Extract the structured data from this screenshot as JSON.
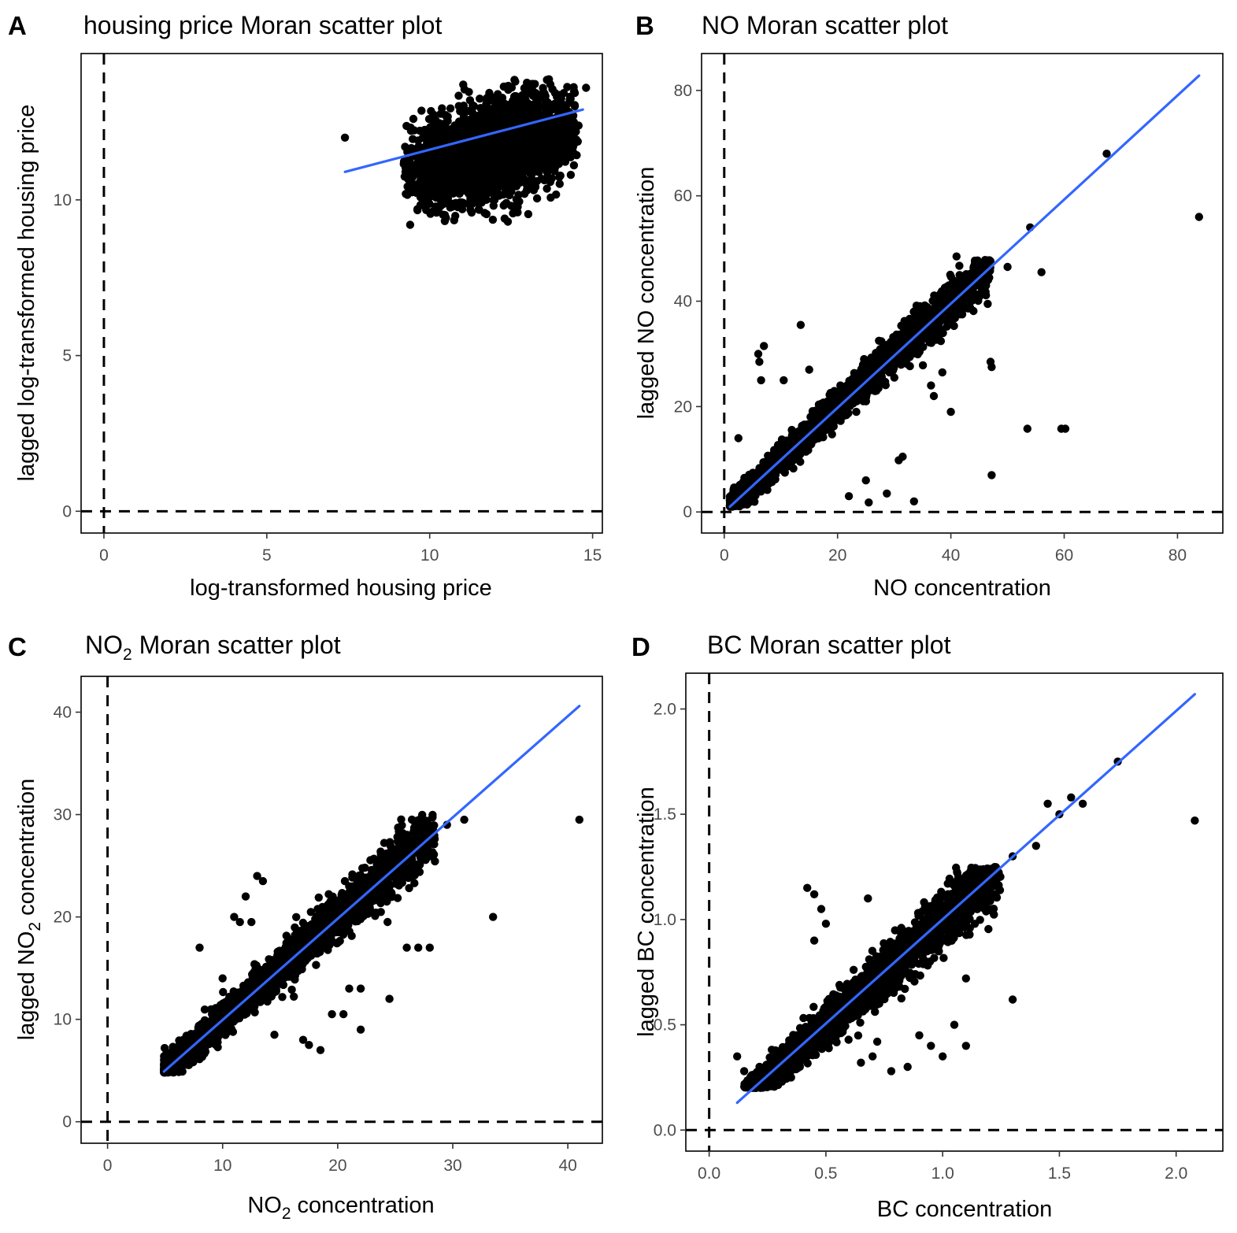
{
  "colors": {
    "fit_line": "#3366ff",
    "points": "#000000",
    "reference_lines": "#000000",
    "tick_text": "#4d4d4d"
  },
  "chart_data": [
    {
      "type": "scatter",
      "panel": "A",
      "title": "housing price Moran scatter plot",
      "title_parts": [
        "housing price Moran scatter plot"
      ],
      "xlabel": "log-transformed housing price",
      "xlabel_parts": [
        "log-transformed housing price"
      ],
      "ylabel": "lagged log-transformed housing price",
      "ylabel_parts": [
        "lagged log-transformed housing price"
      ],
      "xlim": [
        -0.7,
        15.3
      ],
      "ylim": [
        -0.7,
        14.7
      ],
      "xticks": [
        0,
        5,
        10,
        15
      ],
      "xtick_labels": [
        "0",
        "5",
        "10",
        "15"
      ],
      "yticks": [
        0,
        5,
        10
      ],
      "ytick_labels": [
        "0",
        "5",
        "10"
      ],
      "reference_lines": {
        "x": 0,
        "y": 0
      },
      "fit_line": {
        "x": [
          7.4,
          14.7
        ],
        "y": [
          10.9,
          12.9
        ]
      },
      "cloud": {
        "x_range": [
          9.2,
          14.6
        ],
        "y_range": [
          9.3,
          13.9
        ],
        "n": 2600,
        "slope": 0.27,
        "spread": 0.75
      },
      "points": [
        [
          7.4,
          12.0
        ],
        [
          9.4,
          9.2
        ],
        [
          14.8,
          13.6
        ],
        [
          12.4,
          9.3
        ],
        [
          12.3,
          9.4
        ],
        [
          10.8,
          9.9
        ],
        [
          11.0,
          9.7
        ],
        [
          12.7,
          9.6
        ],
        [
          9.5,
          12.6
        ]
      ]
    },
    {
      "type": "scatter",
      "panel": "B",
      "title": "NO Moran scatter plot",
      "title_parts": [
        "NO Moran scatter plot"
      ],
      "xlabel": "NO concentration",
      "xlabel_parts": [
        "NO concentration"
      ],
      "ylabel": "lagged NO concentration",
      "ylabel_parts": [
        "lagged NO concentration"
      ],
      "xlim": [
        -4,
        88
      ],
      "ylim": [
        -4,
        87
      ],
      "xticks": [
        0,
        20,
        40,
        60,
        80
      ],
      "xtick_labels": [
        "0",
        "20",
        "40",
        "60",
        "80"
      ],
      "yticks": [
        0,
        20,
        40,
        60,
        80
      ],
      "ytick_labels": [
        "0",
        "20",
        "40",
        "60",
        "80"
      ],
      "reference_lines": {
        "x": 0,
        "y": 0
      },
      "fit_line": {
        "x": [
          1,
          83.8
        ],
        "y": [
          1,
          82.8
        ]
      },
      "cloud": {
        "x_range": [
          1,
          47
        ],
        "y_range": [
          1,
          48
        ],
        "n": 2200,
        "slope": 1.0,
        "spread": 1.6
      },
      "points": [
        [
          83.8,
          56.0
        ],
        [
          67.5,
          68.0
        ],
        [
          59.5,
          15.8
        ],
        [
          60.2,
          15.8
        ],
        [
          53.5,
          15.8
        ],
        [
          47.2,
          7.0
        ],
        [
          47.0,
          28.5
        ],
        [
          47.2,
          27.5
        ],
        [
          40.0,
          19.0
        ],
        [
          37.0,
          22.0
        ],
        [
          33.5,
          2.0
        ],
        [
          31.5,
          10.5
        ],
        [
          30.8,
          9.8
        ],
        [
          28.7,
          3.5
        ],
        [
          25.5,
          1.8
        ],
        [
          25.0,
          6.0
        ],
        [
          22.0,
          3.0
        ],
        [
          13.5,
          35.5
        ],
        [
          7.0,
          31.5
        ],
        [
          6.0,
          30.0
        ],
        [
          6.2,
          28.5
        ],
        [
          10.5,
          25.0
        ],
        [
          6.5,
          25.0
        ],
        [
          15.0,
          27.0
        ],
        [
          20.5,
          24.0
        ],
        [
          2.5,
          14.0
        ],
        [
          56.0,
          45.5
        ],
        [
          54.0,
          54.0
        ],
        [
          41.0,
          48.5
        ],
        [
          50.0,
          46.5
        ],
        [
          46.5,
          39.5
        ],
        [
          42.0,
          37.5
        ],
        [
          38.5,
          26.5
        ],
        [
          36.5,
          24.0
        ]
      ]
    },
    {
      "type": "scatter",
      "panel": "C",
      "title": "NO2 Moran scatter plot",
      "title_parts": [
        "NO",
        "2",
        " Moran scatter plot"
      ],
      "xlabel": "NO2 concentration",
      "xlabel_parts": [
        "NO",
        "2",
        " concentration"
      ],
      "ylabel": "lagged NO2 concentration",
      "ylabel_parts": [
        "lagged NO",
        "2",
        " concentration"
      ],
      "xlim": [
        -2.3,
        43
      ],
      "ylim": [
        -2.1,
        43.5
      ],
      "xticks": [
        0,
        10,
        20,
        30,
        40
      ],
      "xtick_labels": [
        "0",
        "10",
        "20",
        "30",
        "40"
      ],
      "yticks": [
        0,
        10,
        20,
        30,
        40
      ],
      "ytick_labels": [
        "0",
        "10",
        "20",
        "30",
        "40"
      ],
      "reference_lines": {
        "x": 0,
        "y": 0
      },
      "fit_line": {
        "x": [
          4.9,
          41.0
        ],
        "y": [
          4.9,
          40.6
        ]
      },
      "cloud": {
        "x_range": [
          4.9,
          28.5
        ],
        "y_range": [
          4.8,
          30.0
        ],
        "n": 2200,
        "slope": 1.0,
        "spread": 1.0
      },
      "points": [
        [
          41.0,
          29.5
        ],
        [
          33.5,
          20.0
        ],
        [
          28.0,
          17.0
        ],
        [
          27.0,
          17.0
        ],
        [
          26.0,
          17.0
        ],
        [
          24.5,
          12.0
        ],
        [
          22.0,
          13.0
        ],
        [
          22.0,
          9.0
        ],
        [
          21.0,
          13.0
        ],
        [
          20.5,
          10.5
        ],
        [
          19.5,
          10.5
        ],
        [
          18.5,
          7.0
        ],
        [
          17.5,
          7.5
        ],
        [
          17.0,
          8.0
        ],
        [
          14.5,
          8.5
        ],
        [
          13.0,
          24.0
        ],
        [
          13.5,
          23.5
        ],
        [
          12.0,
          22.0
        ],
        [
          11.0,
          20.0
        ],
        [
          11.5,
          19.5
        ],
        [
          12.5,
          19.5
        ],
        [
          8.0,
          17.0
        ],
        [
          10.0,
          14.0
        ],
        [
          31.0,
          29.5
        ],
        [
          29.5,
          29.0
        ]
      ]
    },
    {
      "type": "scatter",
      "panel": "D",
      "title": "BC Moran scatter plot",
      "title_parts": [
        "BC Moran scatter plot"
      ],
      "xlabel": "BC concentration",
      "xlabel_parts": [
        "BC concentration"
      ],
      "ylabel": "lagged BC concentration",
      "ylabel_parts": [
        "lagged BC concentration"
      ],
      "xlim": [
        -0.1,
        2.2
      ],
      "ylim": [
        -0.1,
        2.17
      ],
      "xticks": [
        0.0,
        0.5,
        1.0,
        1.5,
        2.0
      ],
      "xtick_labels": [
        "0.0",
        "0.5",
        "1.0",
        "1.5",
        "2.0"
      ],
      "yticks": [
        0.0,
        0.5,
        1.0,
        1.5,
        2.0
      ],
      "ytick_labels": [
        "0.0",
        "0.5",
        "1.0",
        "1.5",
        "2.0"
      ],
      "reference_lines": {
        "x": 0,
        "y": 0
      },
      "fit_line": {
        "x": [
          0.12,
          2.08
        ],
        "y": [
          0.13,
          2.07
        ]
      },
      "cloud": {
        "x_range": [
          0.15,
          1.25
        ],
        "y_range": [
          0.2,
          1.25
        ],
        "n": 2300,
        "slope": 1.0,
        "spread": 0.05
      },
      "points": [
        [
          2.08,
          1.47
        ],
        [
          1.75,
          1.75
        ],
        [
          1.6,
          1.55
        ],
        [
          1.55,
          1.58
        ],
        [
          1.5,
          1.5
        ],
        [
          1.45,
          1.55
        ],
        [
          1.3,
          0.62
        ],
        [
          1.1,
          0.72
        ],
        [
          1.05,
          0.5
        ],
        [
          0.95,
          0.4
        ],
        [
          0.9,
          0.45
        ],
        [
          0.85,
          0.3
        ],
        [
          0.78,
          0.28
        ],
        [
          0.72,
          0.42
        ],
        [
          0.7,
          0.35
        ],
        [
          0.65,
          0.32
        ],
        [
          1.1,
          0.4
        ],
        [
          1.0,
          0.35
        ],
        [
          0.42,
          1.15
        ],
        [
          0.45,
          1.12
        ],
        [
          0.48,
          1.05
        ],
        [
          0.5,
          0.98
        ],
        [
          0.68,
          1.1
        ],
        [
          0.45,
          0.9
        ],
        [
          0.12,
          0.35
        ],
        [
          0.15,
          0.28
        ],
        [
          1.3,
          1.3
        ],
        [
          1.4,
          1.35
        ]
      ]
    }
  ]
}
